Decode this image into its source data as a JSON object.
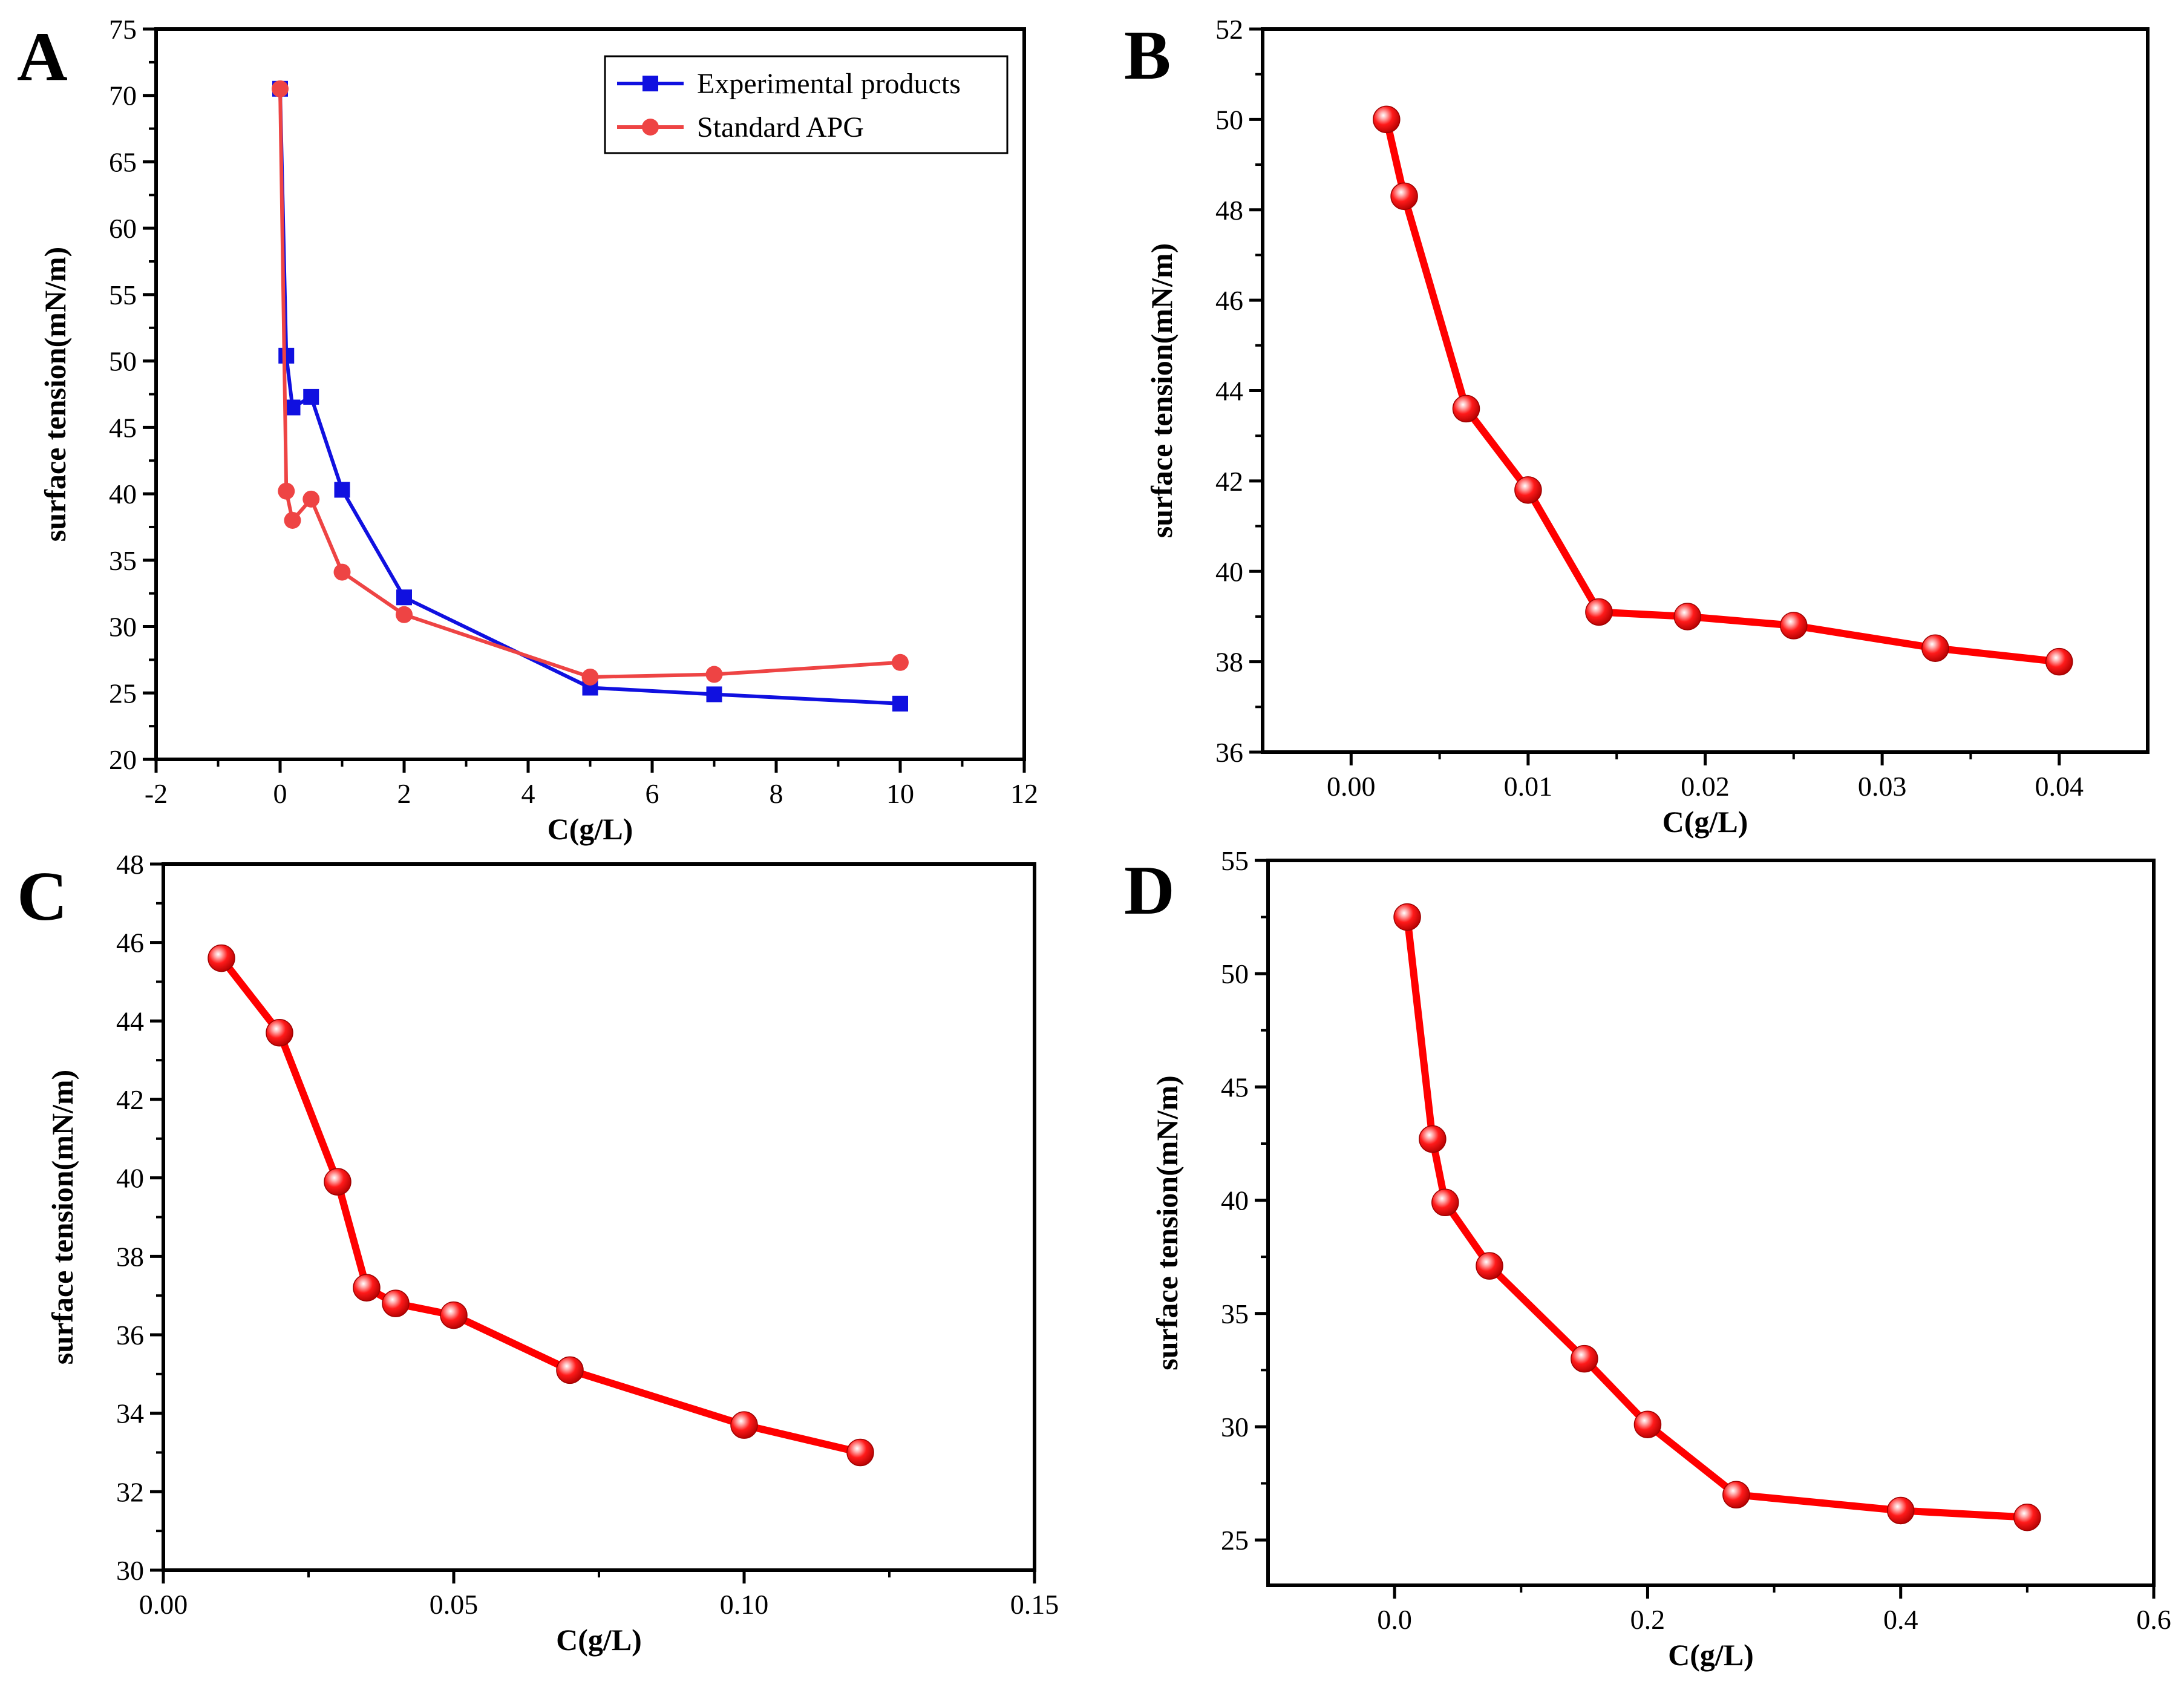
{
  "chart_data": [
    {
      "panel": "A",
      "type": "line",
      "xlabel": "C(g/L)",
      "ylabel": "surface tension(mN/m)",
      "xlim": [
        -2,
        12
      ],
      "ylim": [
        20,
        75
      ],
      "xticks": [
        "-2",
        "0",
        "2",
        "4",
        "6",
        "8",
        "10",
        "12"
      ],
      "yticks": [
        "20",
        "25",
        "30",
        "35",
        "40",
        "45",
        "50",
        "55",
        "60",
        "65",
        "70",
        "75"
      ],
      "legend_position": "top-right",
      "series": [
        {
          "name": "Experimental products",
          "color": "#1010e0",
          "marker": "square",
          "x": [
            0,
            0.1,
            0.2,
            0.5,
            1,
            2,
            5,
            7,
            10
          ],
          "y": [
            70.5,
            50.4,
            46.5,
            47.3,
            40.3,
            32.2,
            25.4,
            24.9,
            24.2
          ]
        },
        {
          "name": "Standard APG",
          "color": "#ee4444",
          "marker": "circle",
          "x": [
            0,
            0.1,
            0.2,
            0.5,
            1,
            2,
            5,
            7,
            10
          ],
          "y": [
            70.5,
            40.2,
            38.0,
            39.6,
            34.1,
            30.9,
            26.2,
            26.4,
            27.3
          ]
        }
      ]
    },
    {
      "panel": "B",
      "type": "line",
      "xlabel": "C(g/L)",
      "ylabel": "surface tension(mN/m)",
      "xlim": [
        -0.005,
        0.045
      ],
      "ylim": [
        36,
        52
      ],
      "xticks": [
        "0.00",
        "0.01",
        "0.02",
        "0.03",
        "0.04"
      ],
      "yticks": [
        "36",
        "38",
        "40",
        "42",
        "44",
        "46",
        "48",
        "50",
        "52"
      ],
      "series": [
        {
          "name": "",
          "color": "#ff0000",
          "marker": "sphere",
          "x": [
            0.002,
            0.003,
            0.0065,
            0.01,
            0.014,
            0.019,
            0.025,
            0.033,
            0.04
          ],
          "y": [
            50.0,
            48.3,
            43.6,
            41.8,
            39.1,
            39.0,
            38.8,
            38.3,
            38.0
          ]
        }
      ]
    },
    {
      "panel": "C",
      "type": "line",
      "xlabel": "C(g/L)",
      "ylabel": "surface tension(mN/m)",
      "xlim": [
        0,
        0.15
      ],
      "ylim": [
        30,
        48
      ],
      "xticks": [
        "0.00",
        "0.05",
        "0.10",
        "0.15"
      ],
      "yticks": [
        "30",
        "32",
        "34",
        "36",
        "38",
        "40",
        "42",
        "44",
        "46",
        "48"
      ],
      "series": [
        {
          "name": "",
          "color": "#ff0000",
          "marker": "sphere",
          "x": [
            0.01,
            0.02,
            0.03,
            0.035,
            0.04,
            0.05,
            0.07,
            0.1,
            0.12
          ],
          "y": [
            45.6,
            43.7,
            39.9,
            37.2,
            36.8,
            36.5,
            35.1,
            33.7,
            33.0
          ]
        }
      ]
    },
    {
      "panel": "D",
      "type": "line",
      "xlabel": "C(g/L)",
      "ylabel": "surface tension(mN/m)",
      "xlim": [
        -0.1,
        0.6
      ],
      "ylim": [
        23,
        55
      ],
      "xticks": [
        "0.0",
        "0.2",
        "0.4",
        "0.6"
      ],
      "yticks": [
        "25",
        "30",
        "35",
        "40",
        "45",
        "50",
        "55"
      ],
      "series": [
        {
          "name": "",
          "color": "#ff0000",
          "marker": "sphere",
          "x": [
            0.01,
            0.03,
            0.04,
            0.075,
            0.15,
            0.2,
            0.27,
            0.4,
            0.5
          ],
          "y": [
            52.5,
            42.7,
            39.9,
            37.1,
            33.0,
            30.1,
            27.0,
            26.3,
            26.0
          ]
        }
      ]
    }
  ]
}
